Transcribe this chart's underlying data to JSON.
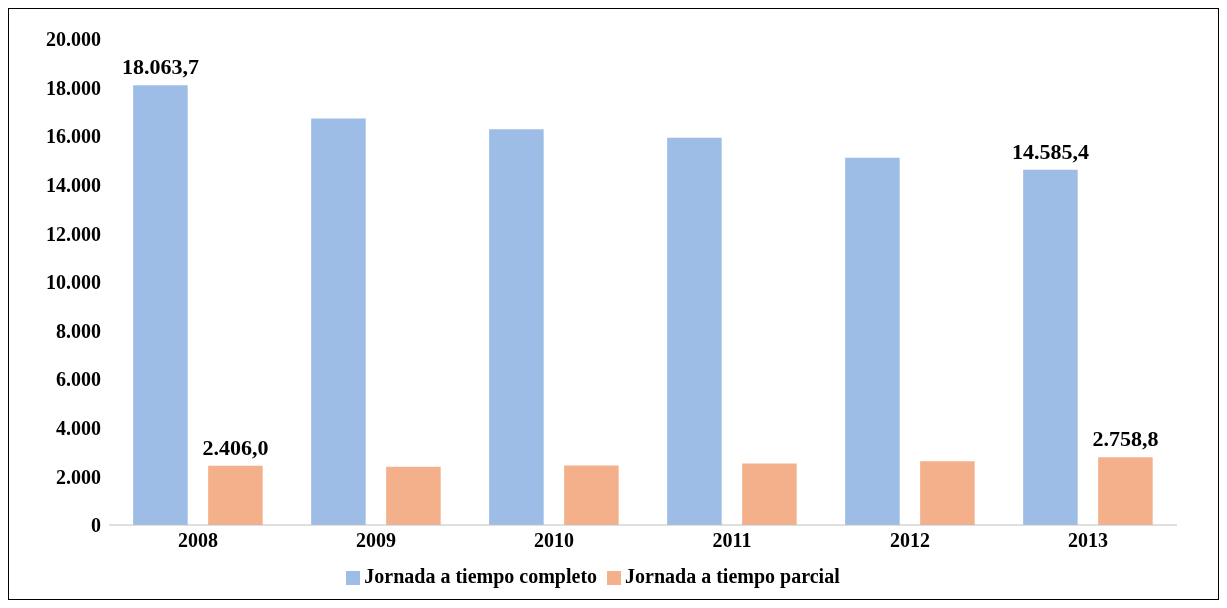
{
  "chart_data": {
    "type": "bar",
    "categories": [
      "2008",
      "2009",
      "2010",
      "2011",
      "2012",
      "2013"
    ],
    "series": [
      {
        "name": "Jornada a tiempo completo",
        "color": "#9dbde6",
        "values": [
          18063.7,
          16700,
          16260,
          15910,
          15080,
          14585.4
        ],
        "value_labels": [
          "18.063,7",
          null,
          null,
          null,
          null,
          "14.585,4"
        ]
      },
      {
        "name": "Jornada a tiempo parcial",
        "color": "#f4b08a",
        "values": [
          2406.0,
          2370,
          2420,
          2500,
          2590,
          2758.8
        ],
        "value_labels": [
          "2.406,0",
          null,
          null,
          null,
          null,
          "2.758,8"
        ]
      }
    ],
    "ylim": [
      0,
      20000
    ],
    "yticks": [
      {
        "value": 0,
        "label": "0"
      },
      {
        "value": 2000,
        "label": "2.000"
      },
      {
        "value": 4000,
        "label": "4.000"
      },
      {
        "value": 6000,
        "label": "6.000"
      },
      {
        "value": 8000,
        "label": "8.000"
      },
      {
        "value": 10000,
        "label": "10.000"
      },
      {
        "value": 12000,
        "label": "12.000"
      },
      {
        "value": 14000,
        "label": "14.000"
      },
      {
        "value": 16000,
        "label": "16.000"
      },
      {
        "value": 18000,
        "label": "18.000"
      },
      {
        "value": 20000,
        "label": "20.000"
      }
    ],
    "grid": false,
    "legend": "bottom"
  }
}
